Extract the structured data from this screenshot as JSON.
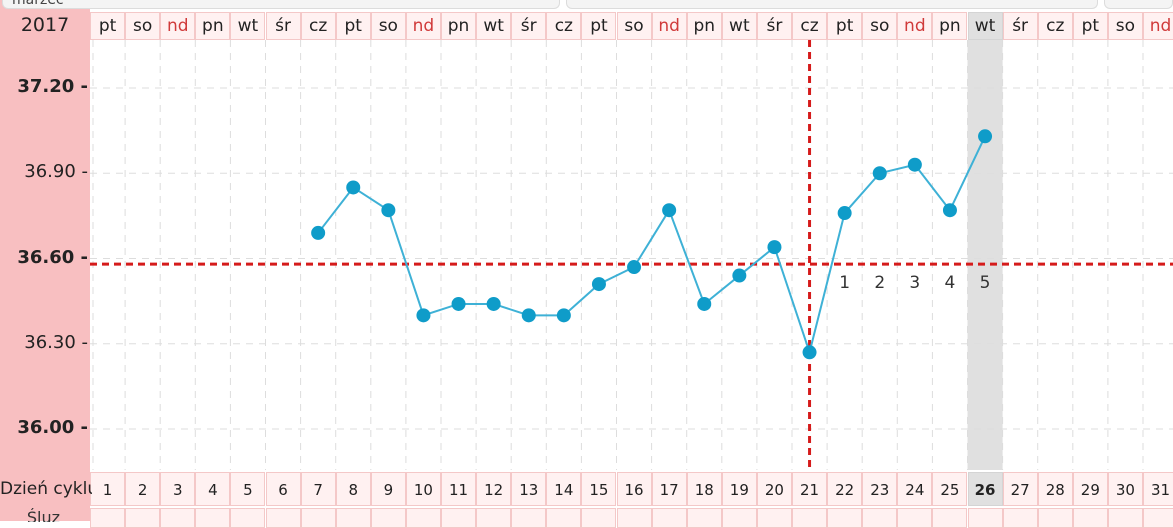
{
  "header": {
    "year": "2017",
    "cut_month_label": "marzec"
  },
  "day_cells": [
    {
      "abbr": "pt",
      "type": "normal"
    },
    {
      "abbr": "so",
      "type": "normal"
    },
    {
      "abbr": "nd",
      "type": "sunday"
    },
    {
      "abbr": "pn",
      "type": "normal"
    },
    {
      "abbr": "wt",
      "type": "normal"
    },
    {
      "abbr": "śr",
      "type": "normal"
    },
    {
      "abbr": "cz",
      "type": "normal"
    },
    {
      "abbr": "pt",
      "type": "normal"
    },
    {
      "abbr": "so",
      "type": "normal"
    },
    {
      "abbr": "nd",
      "type": "sunday"
    },
    {
      "abbr": "pn",
      "type": "normal"
    },
    {
      "abbr": "wt",
      "type": "normal"
    },
    {
      "abbr": "śr",
      "type": "normal"
    },
    {
      "abbr": "cz",
      "type": "normal"
    },
    {
      "abbr": "pt",
      "type": "normal"
    },
    {
      "abbr": "so",
      "type": "normal"
    },
    {
      "abbr": "nd",
      "type": "sunday"
    },
    {
      "abbr": "pn",
      "type": "normal"
    },
    {
      "abbr": "wt",
      "type": "normal"
    },
    {
      "abbr": "śr",
      "type": "normal"
    },
    {
      "abbr": "cz",
      "type": "normal"
    },
    {
      "abbr": "pt",
      "type": "normal"
    },
    {
      "abbr": "so",
      "type": "normal"
    },
    {
      "abbr": "nd",
      "type": "sunday"
    },
    {
      "abbr": "pn",
      "type": "normal"
    },
    {
      "abbr": "wt",
      "type": "selected"
    },
    {
      "abbr": "śr",
      "type": "normal"
    },
    {
      "abbr": "cz",
      "type": "normal"
    },
    {
      "abbr": "pt",
      "type": "normal"
    },
    {
      "abbr": "so",
      "type": "normal"
    },
    {
      "abbr": "nd",
      "type": "sunday"
    }
  ],
  "cycle_row": {
    "label": "Dzień cyklu",
    "days": [
      "1",
      "2",
      "3",
      "4",
      "5",
      "6",
      "7",
      "8",
      "9",
      "10",
      "11",
      "12",
      "13",
      "14",
      "15",
      "16",
      "17",
      "18",
      "19",
      "20",
      "21",
      "22",
      "23",
      "24",
      "25",
      "26",
      "27",
      "28",
      "29",
      "30",
      "31"
    ],
    "selected_day": 26
  },
  "bottom_cut_label": "Śluz",
  "chart_data": {
    "type": "line",
    "title": "",
    "xlabel": "Dzień cyklu",
    "ylabel": "",
    "x": [
      7,
      8,
      9,
      10,
      11,
      12,
      13,
      14,
      15,
      16,
      17,
      18,
      19,
      20,
      21,
      22,
      23,
      24,
      25,
      26
    ],
    "series": [
      {
        "values": [
          36.69,
          36.85,
          36.77,
          36.4,
          36.44,
          36.44,
          36.4,
          36.4,
          36.51,
          36.57,
          36.77,
          36.44,
          36.54,
          36.64,
          36.27,
          36.76,
          36.9,
          36.93,
          36.77,
          37.03
        ]
      }
    ],
    "y_ticks": [
      "37.20",
      "36.90",
      "36.60",
      "36.30",
      "36.00"
    ],
    "y_ticks_bold": [
      "37.20",
      "36.60",
      "36.00"
    ],
    "ylim": [
      35.93,
      37.32
    ],
    "xlim": [
      1,
      31
    ],
    "coverline": 36.58,
    "ovulation_day": 21,
    "high_temp_labels": [
      {
        "day": 22,
        "label": "1"
      },
      {
        "day": 23,
        "label": "2"
      },
      {
        "day": 24,
        "label": "3"
      },
      {
        "day": 25,
        "label": "4"
      },
      {
        "day": 26,
        "label": "5"
      }
    ],
    "colors": {
      "line": "#3eb1d6",
      "marker": "#0f9cc9",
      "coverline": "#d51b1b",
      "left_panel": "#f8bfc1",
      "sunday_text": "#d03a3a",
      "selected_column": "#e0e0e0"
    },
    "grid": true,
    "legend": "none"
  }
}
